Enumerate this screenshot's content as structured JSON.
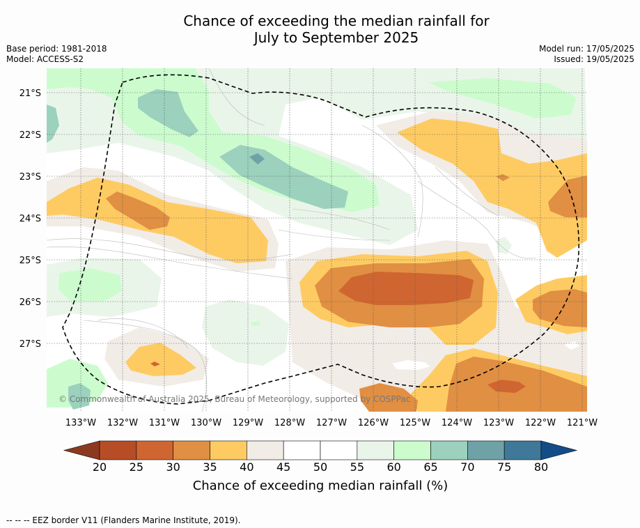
{
  "title": {
    "line1": "Chance of exceeding the median rainfall for",
    "line2": "July to September 2025"
  },
  "meta": {
    "base_period": "Base period: 1981-2018",
    "model": "Model: ACCESS-S2",
    "model_run": "Model run: 17/05/2025",
    "issued": "Issued: 19/05/2025"
  },
  "axes": {
    "lat_labels": [
      "21°S",
      "22°S",
      "23°S",
      "24°S",
      "25°S",
      "26°S",
      "27°S"
    ],
    "lon_labels": [
      "133°W",
      "132°W",
      "131°W",
      "130°W",
      "129°W",
      "128°W",
      "127°W",
      "126°W",
      "125°W",
      "124°W",
      "123°W",
      "122°W",
      "121°W"
    ]
  },
  "copyright": "© Commonwealth of Australia 2025, Bureau of Meteorology, supported by COSPPac",
  "colorbar": {
    "title": "Chance of exceeding median rainfall (%)",
    "ticks": [
      "20",
      "25",
      "30",
      "35",
      "40",
      "45",
      "50",
      "55",
      "60",
      "65",
      "70",
      "75",
      "80"
    ],
    "bins": [
      {
        "label": "<20",
        "color": "#8c3a1f"
      },
      {
        "label": "20-25",
        "color": "#b64d26"
      },
      {
        "label": "25-30",
        "color": "#cf6631"
      },
      {
        "label": "30-35",
        "color": "#e08f43"
      },
      {
        "label": "35-40",
        "color": "#fecb63"
      },
      {
        "label": "40-45",
        "color": "#f1ece6"
      },
      {
        "label": "45-50",
        "color": "#ffffff"
      },
      {
        "label": "50-55",
        "color": "#ffffff"
      },
      {
        "label": "55-60",
        "color": "#eaf5ea"
      },
      {
        "label": "60-65",
        "color": "#ccfcce"
      },
      {
        "label": "65-70",
        "color": "#9bd1bd"
      },
      {
        "label": "70-75",
        "color": "#6ea2a6"
      },
      {
        "label": "75-80",
        "color": "#3f7899"
      },
      {
        "label": ">80",
        "color": "#134d87"
      }
    ]
  },
  "footnote": "--  --  -- EEZ border V11 (Flanders Marine Institute, 2019)."
}
